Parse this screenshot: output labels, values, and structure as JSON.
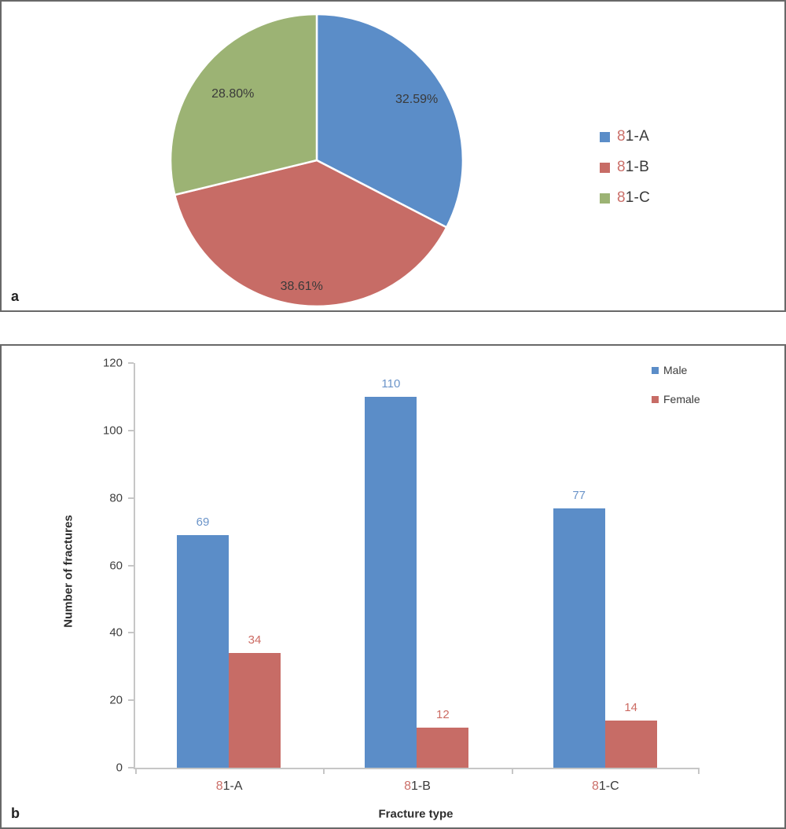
{
  "panels": {
    "a": {
      "label": "a"
    },
    "b": {
      "label": "b"
    }
  },
  "colors": {
    "blue": "#5B8DC8",
    "red": "#C76C66",
    "green": "#9CB374",
    "highlight_red": "#CB6F69",
    "text_dark": "#3A3A3A",
    "axis_gray": "#C6C6C6",
    "label_blue": "#6B94C9",
    "label_red": "#CC6B63"
  },
  "chart_data": [
    {
      "type": "pie",
      "labels": [
        "81-A",
        "81-B",
        "81-C"
      ],
      "values": [
        32.59,
        38.61,
        28.8
      ],
      "value_labels": [
        "32.59%",
        "38.61%",
        "28.80%"
      ],
      "colors": [
        "#5B8DC8",
        "#C76C66",
        "#9CB374"
      ],
      "start_angle_deg": 0,
      "direction": "clockwise",
      "legend_position": "right",
      "label_radius_frac": [
        0.8,
        0.87,
        0.73
      ]
    },
    {
      "type": "bar",
      "categories": [
        "81-A",
        "81-B",
        "81-C"
      ],
      "series": [
        {
          "name": "Male",
          "color": "#5B8DC8",
          "label_color": "#6B94C9",
          "values": [
            69,
            110,
            77
          ]
        },
        {
          "name": "Female",
          "color": "#C76C66",
          "label_color": "#CC6B63",
          "values": [
            34,
            12,
            14
          ]
        }
      ],
      "xlabel": "Fracture type",
      "ylabel": "Number of fractures",
      "ylim": [
        0,
        120
      ],
      "ytick_step": 20,
      "grid": false,
      "legend_position": "top-right"
    }
  ]
}
